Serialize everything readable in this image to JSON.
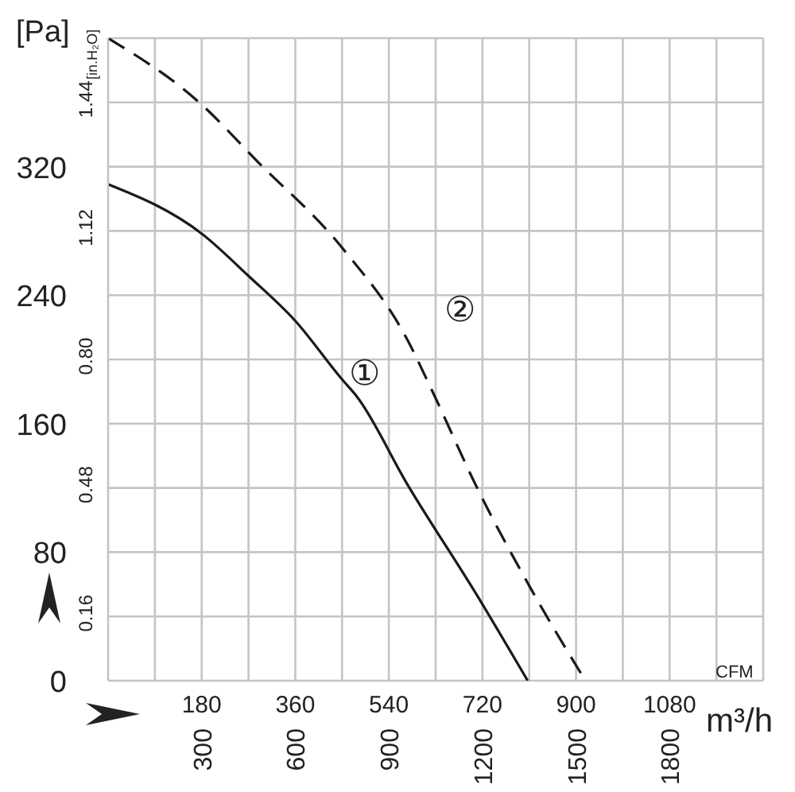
{
  "chart_data": {
    "type": "line",
    "ylabel": "[Pa]",
    "y2label": "[in.H₂O]",
    "xlabel": "m³/h",
    "x2label": "CFM",
    "xlim": [
      0,
      2100
    ],
    "xticks": [
      {
        "value": 0,
        "label": null
      },
      {
        "value": 150,
        "label": null
      },
      300,
      {
        "value": 450,
        "label": null
      },
      600,
      {
        "value": 750,
        "label": null
      },
      900,
      {
        "value": 1050,
        "label": null
      },
      1200,
      {
        "value": 1350,
        "label": null
      },
      1500,
      {
        "value": 1650,
        "label": null
      },
      1800,
      {
        "value": 1950,
        "label": null
      },
      {
        "value": 2100,
        "label": null
      }
    ],
    "x2lim": [
      0,
      1260
    ],
    "x2ticks": [
      180,
      360,
      540,
      720,
      900,
      1080
    ],
    "ylim": [
      0,
      400
    ],
    "yticks": [
      0,
      {
        "value": 40,
        "label": null
      },
      80,
      {
        "value": 120,
        "label": null
      },
      160,
      {
        "value": 200,
        "label": null
      },
      240,
      {
        "value": 280,
        "label": null
      },
      320,
      {
        "value": 360,
        "label": null
      },
      {
        "value": 400,
        "label": null
      }
    ],
    "y2lim": [
      0,
      1.6
    ],
    "y2ticks": [
      0.16,
      0.48,
      {
        "value": 0.8,
        "label": "0.80"
      },
      1.12,
      1.44
    ],
    "grid": true,
    "marker": "none",
    "series": [
      {
        "color": "#1a1a1a",
        "line_style": "solid",
        "x": [
          0,
          302,
          450,
          600,
          748,
          797,
          960,
          1183,
          1345
        ],
        "values": [
          309,
          278,
          252,
          224,
          188,
          177,
          122,
          53,
          0
        ]
      },
      {
        "color": "#1a1a1a",
        "line_style": "dashed",
        "x": [
          0,
          292,
          480,
          748,
          960,
          1035,
          1183,
          1356,
          1530
        ],
        "values": [
          400,
          360,
          323,
          270,
          212,
          182,
          120,
          57,
          0
        ]
      }
    ],
    "annotations": [
      "①",
      "②"
    ]
  }
}
